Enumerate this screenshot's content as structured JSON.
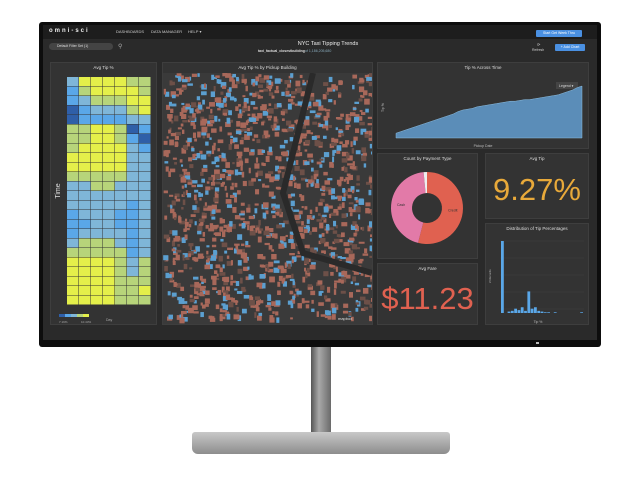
{
  "app": {
    "logo": "omni-sci",
    "nav": [
      "DASHBOARDS",
      "DATA MANAGER",
      "HELP ▾"
    ],
    "filter_set": "Default Filter Set (1)",
    "dashboard_title": "NYC Taxi Tipping Trends",
    "table_name": "taxi_factual_closestbuilding",
    "record_count": "of 1,186,205,680",
    "refresh_label": "Refresh",
    "add_chart_label": "+ Add Chart",
    "top_button_label": "Start Get Week Thru"
  },
  "colors": {
    "accent": "#4a90e2",
    "avg_tip": "#e8a93a",
    "avg_fare": "#e06150",
    "pie_credit": "#e06150",
    "pie_cash": "#e27aa8",
    "area": "#5b8db8",
    "bars": "#5aa7e8"
  },
  "heatmap": {
    "title": "Avg Tip %",
    "ylabel": "Time",
    "xlabel": "Day",
    "legend_min": "7.19%",
    "legend_max": "10.43%",
    "levels": [
      [
        2,
        4,
        4,
        4,
        4,
        3,
        3
      ],
      [
        1,
        3,
        4,
        4,
        4,
        4,
        3
      ],
      [
        1,
        2,
        3,
        3,
        3,
        4,
        4
      ],
      [
        0,
        1,
        2,
        2,
        2,
        3,
        4
      ],
      [
        0,
        1,
        1,
        1,
        1,
        2,
        2
      ],
      [
        3,
        3,
        4,
        4,
        3,
        0,
        1
      ],
      [
        3,
        3,
        4,
        4,
        3,
        1,
        0
      ],
      [
        3,
        4,
        4,
        4,
        4,
        2,
        1
      ],
      [
        4,
        4,
        4,
        4,
        4,
        2,
        2
      ],
      [
        4,
        4,
        4,
        4,
        4,
        2,
        2
      ],
      [
        3,
        3,
        3,
        3,
        3,
        2,
        2
      ],
      [
        2,
        2,
        3,
        3,
        2,
        2,
        2
      ],
      [
        2,
        2,
        2,
        2,
        2,
        2,
        2
      ],
      [
        2,
        2,
        2,
        2,
        2,
        1,
        2
      ],
      [
        1,
        2,
        2,
        2,
        1,
        1,
        2
      ],
      [
        1,
        1,
        2,
        2,
        1,
        1,
        2
      ],
      [
        1,
        2,
        2,
        2,
        2,
        1,
        2
      ],
      [
        2,
        3,
        3,
        3,
        2,
        1,
        2
      ],
      [
        3,
        3,
        3,
        3,
        3,
        1,
        2
      ],
      [
        4,
        4,
        4,
        4,
        3,
        2,
        3
      ],
      [
        4,
        4,
        4,
        4,
        3,
        2,
        3
      ],
      [
        4,
        4,
        4,
        4,
        3,
        3,
        3
      ],
      [
        4,
        4,
        4,
        4,
        3,
        3,
        4
      ],
      [
        4,
        4,
        4,
        4,
        3,
        3,
        3
      ]
    ],
    "palette": [
      "#2f5fa8",
      "#5aa7e8",
      "#7fb6d8",
      "#b7d47a",
      "#e4ef4a"
    ]
  },
  "map": {
    "title": "Avg Tip % by Pickup Building",
    "attribution": "mapbox"
  },
  "time_chart": {
    "title": "Tip % Across Time",
    "xlabel": "Pickup Date",
    "ylabel": "Tip %",
    "legend_label": "Legend ▾",
    "values": [
      4.6,
      4.8,
      5.0,
      5.2,
      5.4,
      5.6,
      5.8,
      6.0,
      6.2,
      6.4,
      6.6,
      6.8,
      7.0,
      7.3,
      7.5,
      7.6,
      7.7,
      7.9,
      8.0,
      8.1,
      8.2,
      8.3,
      8.4,
      8.5,
      8.6,
      8.6,
      8.7,
      8.8,
      8.8,
      8.9,
      9.0,
      9.1,
      9.2,
      9.3,
      9.4,
      9.6,
      9.8,
      10.0,
      10.3,
      10.5
    ]
  },
  "payment": {
    "title": "Count by Payment Type",
    "slices": [
      {
        "label": "Credit",
        "value": 54
      },
      {
        "label": "Cash",
        "value": 44.5
      },
      {
        "label": "Other",
        "value": 1.5
      }
    ]
  },
  "avg_tip": {
    "title": "Avg Tip",
    "value": "9.27%"
  },
  "avg_fare": {
    "title": "Avg Fare",
    "value": "$11.23"
  },
  "distribution": {
    "title": "Distribution of Tip Percentages",
    "xlabel": "Tip %",
    "ylabel": "# Records",
    "values": [
      100,
      0,
      2,
      3,
      6,
      4,
      8,
      3,
      30,
      6,
      8,
      3,
      2,
      1,
      1,
      0,
      1,
      0,
      0,
      0,
      0,
      0,
      0,
      0,
      1
    ]
  }
}
